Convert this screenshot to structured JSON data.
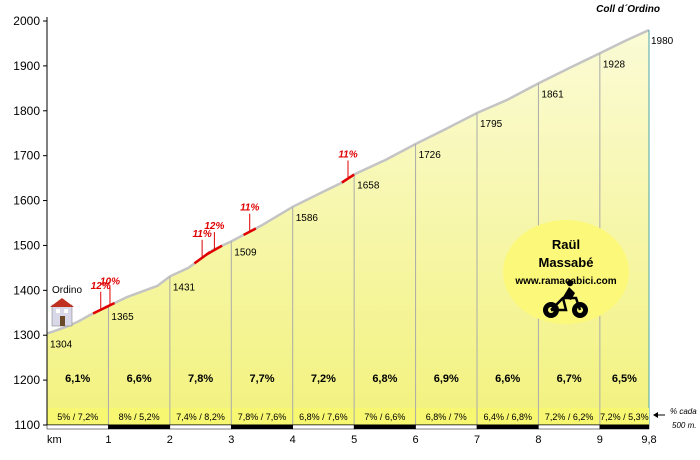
{
  "chart_data": {
    "type": "area",
    "title": "Coll d´Ordino",
    "start_label": "Ordino",
    "x_unit_label": "km",
    "x_ticks": [
      "1",
      "2",
      "3",
      "4",
      "5",
      "6",
      "7",
      "8",
      "9",
      "9,8"
    ],
    "y_ticks": [
      "1100",
      "1200",
      "1300",
      "1400",
      "1500",
      "1600",
      "1700",
      "1800",
      "1900",
      "2000"
    ],
    "xlim": [
      0,
      9.8
    ],
    "ylim": [
      1100,
      2000
    ],
    "profile": [
      {
        "x": 0,
        "y": 1304
      },
      {
        "x": 0.1,
        "y": 1308
      },
      {
        "x": 0.3,
        "y": 1318
      },
      {
        "x": 0.5,
        "y": 1330
      },
      {
        "x": 0.7,
        "y": 1345
      },
      {
        "x": 1,
        "y": 1365
      },
      {
        "x": 1.3,
        "y": 1385
      },
      {
        "x": 1.6,
        "y": 1400
      },
      {
        "x": 1.8,
        "y": 1410
      },
      {
        "x": 2,
        "y": 1431
      },
      {
        "x": 2.3,
        "y": 1450
      },
      {
        "x": 2.5,
        "y": 1470
      },
      {
        "x": 2.7,
        "y": 1490
      },
      {
        "x": 3,
        "y": 1509
      },
      {
        "x": 3.5,
        "y": 1545
      },
      {
        "x": 4,
        "y": 1586
      },
      {
        "x": 4.5,
        "y": 1620
      },
      {
        "x": 4.8,
        "y": 1640
      },
      {
        "x": 5,
        "y": 1658
      },
      {
        "x": 5.5,
        "y": 1690
      },
      {
        "x": 6,
        "y": 1726
      },
      {
        "x": 6.5,
        "y": 1760
      },
      {
        "x": 7,
        "y": 1795
      },
      {
        "x": 7.5,
        "y": 1825
      },
      {
        "x": 8,
        "y": 1861
      },
      {
        "x": 8.5,
        "y": 1895
      },
      {
        "x": 9,
        "y": 1928
      },
      {
        "x": 9.4,
        "y": 1955
      },
      {
        "x": 9.8,
        "y": 1980
      }
    ],
    "km_markers": [
      {
        "x": 0,
        "label": "1304"
      },
      {
        "x": 1,
        "label": "1365"
      },
      {
        "x": 2,
        "label": "1431"
      },
      {
        "x": 3,
        "label": "1509"
      },
      {
        "x": 4,
        "label": "1586"
      },
      {
        "x": 5,
        "label": "1658"
      },
      {
        "x": 6,
        "label": "1726"
      },
      {
        "x": 7,
        "label": "1795"
      },
      {
        "x": 8,
        "label": "1861"
      },
      {
        "x": 9,
        "label": "1928"
      },
      {
        "x": 9.8,
        "label": "1980"
      }
    ],
    "segment_gradients": [
      "6,1%",
      "6,6%",
      "7,8%",
      "7,7%",
      "7,2%",
      "6,8%",
      "6,9%",
      "6,6%",
      "6,7%",
      "6,5%"
    ],
    "half_km_gradients": [
      "5%  /  7,2%",
      "8%  /  5,2%",
      "7,4% / 8,2%",
      "7,8% / 7,6%",
      "6,8% / 7,6%",
      "7%  /  6,6%",
      "6,8%  /  7%",
      "6,4% / 6,8%",
      "7,2% / 6,2%",
      "7,2% / 5,3%"
    ],
    "half_km_note": [
      "% cada",
      "500 m."
    ],
    "steep_sections": [
      {
        "x_start": 0.75,
        "x_end": 1.0,
        "label": "12%"
      },
      {
        "x_start": 0.95,
        "x_end": 1.1,
        "label": "10%"
      },
      {
        "x_start": 2.4,
        "x_end": 2.65,
        "label": "11%"
      },
      {
        "x_start": 2.6,
        "x_end": 2.85,
        "label": "12%"
      },
      {
        "x_start": 3.2,
        "x_end": 3.4,
        "label": "11%"
      },
      {
        "x_start": 4.8,
        "x_end": 5.0,
        "label": "11%"
      }
    ],
    "colors": {
      "fill_top": "#fbfbd6",
      "fill_bottom": "#f2f27e",
      "profile_line": "#c4c4c4",
      "steep": "#e00000",
      "band": "#f7f771",
      "badge": "#fcf879"
    },
    "badge": {
      "name_line1": "Raül",
      "name_line2": "Massabé",
      "website": "www.ramacabici.com",
      "icon": "cyclist-icon"
    },
    "start_icon": "village-icon"
  }
}
